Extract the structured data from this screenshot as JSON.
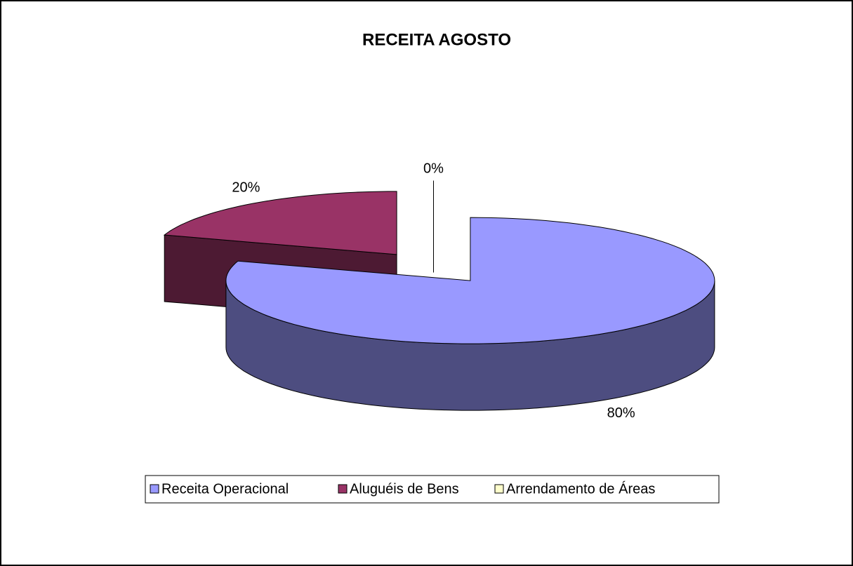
{
  "chart_data": {
    "type": "pie",
    "title": "RECEITA AGOSTO",
    "categories": [
      "Receita Operacional",
      "Aluguéis de Bens",
      "Arrendamento de Áreas"
    ],
    "values": [
      80,
      20,
      0
    ],
    "value_labels": [
      "80%",
      "20%",
      "0%"
    ],
    "colors": [
      "#9999ff",
      "#993366",
      "#ffffcc"
    ],
    "legend": "bottom"
  }
}
